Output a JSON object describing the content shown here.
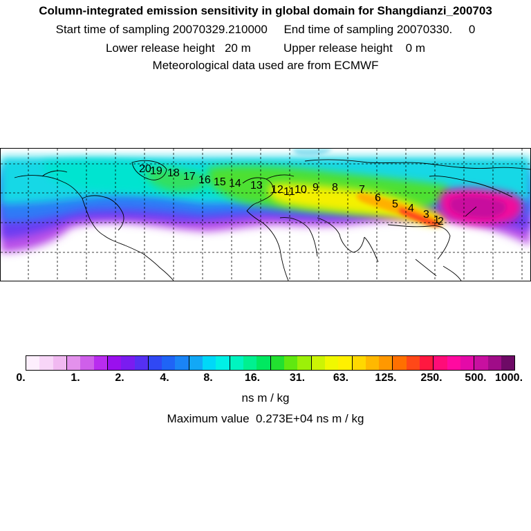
{
  "header": {
    "title": "Column-integrated emission sensitivity in global domain for Shangdianzi_200703",
    "sampling": "Start time of sampling 20070329.210000     End time of sampling 20070330.     0",
    "release": "Lower release height   20 m          Upper release height    0 m",
    "met": "Meteorological data used are from ECMWF"
  },
  "map": {
    "trajectory_labels": [
      "1",
      "2",
      "3",
      "4",
      "5",
      "6",
      "7",
      "8",
      "9",
      "10",
      "11",
      "12",
      "13",
      "14",
      "15",
      "16",
      "17",
      "18",
      "19",
      "20"
    ]
  },
  "colorbar": {
    "colors": [
      "#fdeffd",
      "#f8d6f8",
      "#f1b9f1",
      "#e391ec",
      "#cf5fea",
      "#b92cef",
      "#9a10ee",
      "#7a1cf0",
      "#5530f2",
      "#3048f4",
      "#1f64f6",
      "#1a84f6",
      "#12a8f6",
      "#00d8f8",
      "#00f0e6",
      "#00f4c0",
      "#00f090",
      "#00e860",
      "#22e030",
      "#60e810",
      "#9cf008",
      "#ccf404",
      "#f0f800",
      "#fff000",
      "#ffd800",
      "#ffb800",
      "#ff9800",
      "#ff7000",
      "#ff4818",
      "#ff1840",
      "#ff0c78",
      "#ff0aa0",
      "#e40aa8",
      "#c810a0",
      "#a00c88",
      "#6e0a66"
    ],
    "tick_labels": [
      "0.",
      "1.",
      "2.",
      "4.",
      "8.",
      "16.",
      "31.",
      "63.",
      "125.",
      "250.",
      "500.",
      "1000."
    ],
    "units": "ns m / kg"
  },
  "footer": {
    "max_value": "Maximum value  0.273E+04 ns m / kg"
  }
}
